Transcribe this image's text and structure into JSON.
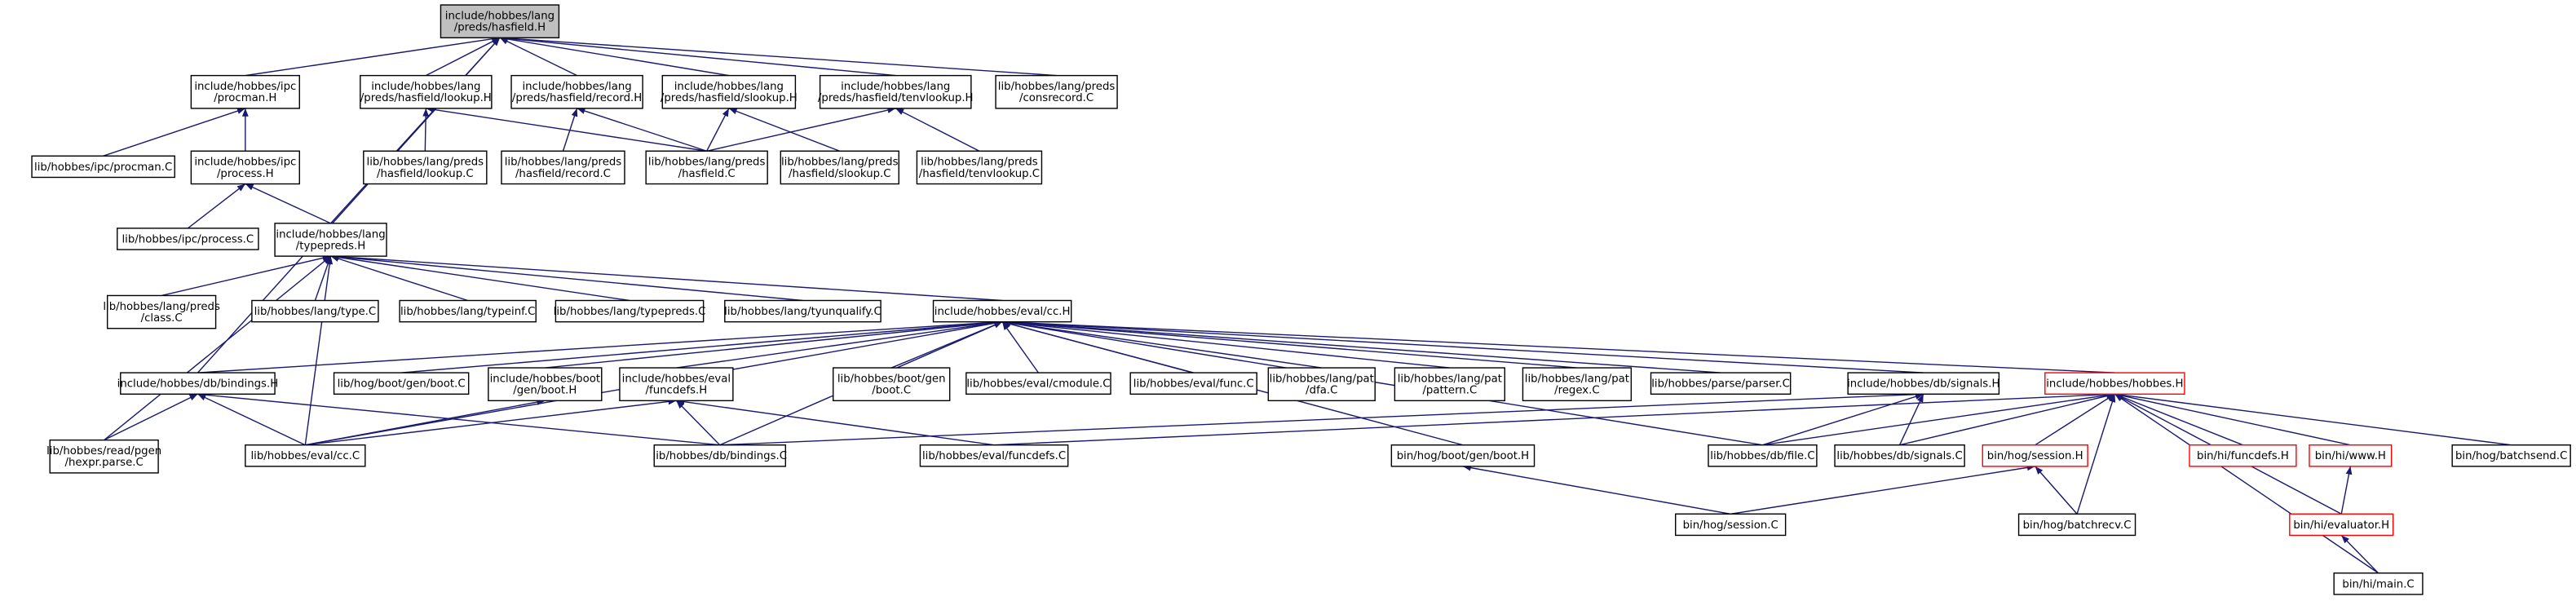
{
  "nodes": [
    {
      "lines": [
        "include/hobbes/lang",
        "/preds/hasfield.H"
      ]
    },
    {
      "lines": [
        "include/hobbes/ipc",
        "/procman.H"
      ]
    },
    {
      "lines": [
        "include/hobbes/lang",
        "/preds/hasfield/lookup.H"
      ]
    },
    {
      "lines": [
        "include/hobbes/lang",
        "/preds/hasfield/record.H"
      ]
    },
    {
      "lines": [
        "include/hobbes/lang",
        "/preds/hasfield/slookup.H"
      ]
    },
    {
      "lines": [
        "include/hobbes/lang",
        "/preds/hasfield/tenvlookup.H"
      ]
    },
    {
      "lines": [
        "lib/hobbes/lang/preds",
        "/consrecord.C"
      ]
    },
    {
      "lines": [
        "lib/hobbes/ipc/procman.C"
      ]
    },
    {
      "lines": [
        "include/hobbes/ipc",
        "/process.H"
      ]
    },
    {
      "lines": [
        "lib/hobbes/lang/preds",
        "/hasfield/lookup.C"
      ]
    },
    {
      "lines": [
        "lib/hobbes/lang/preds",
        "/hasfield/record.C"
      ]
    },
    {
      "lines": [
        "lib/hobbes/lang/preds",
        "/hasfield.C"
      ]
    },
    {
      "lines": [
        "lib/hobbes/lang/preds",
        "/hasfield/slookup.C"
      ]
    },
    {
      "lines": [
        "lib/hobbes/lang/preds",
        "/hasfield/tenvlookup.C"
      ]
    },
    {
      "lines": [
        "lib/hobbes/ipc/process.C"
      ]
    },
    {
      "lines": [
        "include/hobbes/lang",
        "/typepreds.H"
      ]
    },
    {
      "lines": [
        "lib/hobbes/lang/preds",
        "/class.C"
      ]
    },
    {
      "lines": [
        "lib/hobbes/lang/type.C"
      ]
    },
    {
      "lines": [
        "lib/hobbes/lang/typeinf.C"
      ]
    },
    {
      "lines": [
        "lib/hobbes/lang/typepreds.C"
      ]
    },
    {
      "lines": [
        "lib/hobbes/lang/tyunqualify.C"
      ]
    },
    {
      "lines": [
        "include/hobbes/eval/cc.H"
      ]
    },
    {
      "lines": [
        "include/hobbes/db/bindings.H"
      ]
    },
    {
      "lines": [
        "lib/hog/boot/gen/boot.C"
      ]
    },
    {
      "lines": [
        "include/hobbes/boot",
        "/gen/boot.H"
      ]
    },
    {
      "lines": [
        "include/hobbes/eval",
        "/funcdefs.H"
      ]
    },
    {
      "lines": [
        "lib/hobbes/boot/gen",
        "/boot.C"
      ]
    },
    {
      "lines": [
        "lib/hobbes/eval/cmodule.C"
      ]
    },
    {
      "lines": [
        "lib/hobbes/eval/func.C"
      ]
    },
    {
      "lines": [
        "lib/hobbes/lang/pat",
        "/dfa.C"
      ]
    },
    {
      "lines": [
        "lib/hobbes/lang/pat",
        "/pattern.C"
      ]
    },
    {
      "lines": [
        "lib/hobbes/lang/pat",
        "/regex.C"
      ]
    },
    {
      "lines": [
        "lib/hobbes/parse/parser.C"
      ]
    },
    {
      "lines": [
        "include/hobbes/db/signals.H"
      ]
    },
    {
      "lines": [
        "include/hobbes/hobbes.H"
      ]
    },
    {
      "lines": [
        "lib/hobbes/read/pgen",
        "/hexpr.parse.C"
      ]
    },
    {
      "lines": [
        "lib/hobbes/eval/cc.C"
      ]
    },
    {
      "lines": [
        "lib/hobbes/db/bindings.C"
      ]
    },
    {
      "lines": [
        "lib/hobbes/eval/funcdefs.C"
      ]
    },
    {
      "lines": [
        "bin/hog/boot/gen/boot.H"
      ]
    },
    {
      "lines": [
        "lib/hobbes/db/file.C"
      ]
    },
    {
      "lines": [
        "lib/hobbes/db/signals.C"
      ]
    },
    {
      "lines": [
        "bin/hog/session.H"
      ]
    },
    {
      "lines": [
        "bin/hi/funcdefs.H"
      ]
    },
    {
      "lines": [
        "bin/hi/www.H"
      ]
    },
    {
      "lines": [
        "bin/hog/batchsend.C"
      ]
    },
    {
      "lines": [
        "bin/hog/session.C"
      ]
    },
    {
      "lines": [
        "bin/hog/batchrecv.C"
      ]
    },
    {
      "lines": [
        "bin/hi/evaluator.H"
      ]
    },
    {
      "lines": [
        "bin/hi/main.C"
      ]
    }
  ]
}
